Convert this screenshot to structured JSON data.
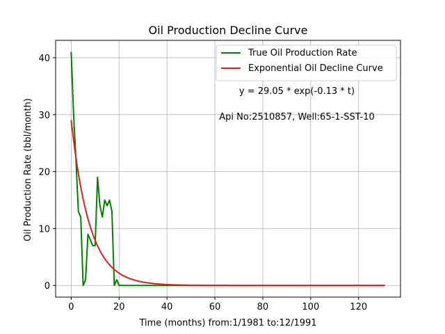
{
  "chart_data": {
    "type": "line",
    "title": "Oil Production Decline Curve",
    "xlabel": "Time (months) from:1/1981 to:12/1991",
    "ylabel": "Oil Production Rate (bbl/month)",
    "xlim": [
      -6.5,
      137.5
    ],
    "ylim": [
      -2.05,
      43.05
    ],
    "xticks": [
      0,
      20,
      40,
      60,
      80,
      100,
      120
    ],
    "yticks": [
      0,
      10,
      20,
      30,
      40
    ],
    "grid": true,
    "legend_position": "top-right",
    "annotations": [
      "y = 29.05 * exp(-0.13 * t)",
      "Api No:2510857, Well:65-1-SST-10"
    ],
    "series": [
      {
        "name": "True Oil Production Rate",
        "color": "#008000",
        "x": [
          0,
          1,
          2,
          3,
          4,
          5,
          6,
          7,
          8,
          9,
          10,
          11,
          12,
          13,
          14,
          15,
          16,
          17,
          18,
          19,
          20,
          131
        ],
        "y": [
          41,
          30,
          22,
          13,
          12,
          0,
          1,
          9,
          8,
          7,
          7,
          19,
          14,
          12,
          15,
          14,
          15,
          13,
          0,
          1,
          0,
          0
        ]
      },
      {
        "name": "Exponential Oil Decline Curve",
        "color": "#d62020",
        "model": {
          "a": 29.05,
          "b": 0.13,
          "x_start": 0,
          "x_end": 131
        }
      }
    ]
  }
}
